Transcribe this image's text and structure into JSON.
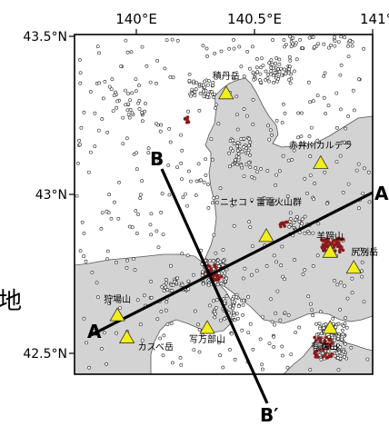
{
  "map": {
    "lon_labels": [
      "140°E",
      "140.5°E",
      "141°E"
    ],
    "lat_labels": [
      "43.5°N",
      "43°N",
      "42.5°N"
    ],
    "section_labels": {
      "a": "A",
      "a_prime": "A'",
      "b": "B",
      "b_prime": "B′"
    },
    "side_text": [
      "地"
    ],
    "volcanoes": [
      {
        "name": "積丹岳",
        "lon": 140.38,
        "lat": 43.32
      },
      {
        "name": "赤井川カルデラ",
        "lon": 140.78,
        "lat": 43.1
      },
      {
        "name": "ニセコ・雷電火山群",
        "lon": 140.55,
        "lat": 42.87
      },
      {
        "name": "羊蹄山",
        "lon": 140.82,
        "lat": 42.82
      },
      {
        "name": "尻別岳",
        "lon": 140.92,
        "lat": 42.77
      },
      {
        "name": "狩場山",
        "lon": 139.92,
        "lat": 42.62
      },
      {
        "name": "カスベ岳",
        "lon": 139.96,
        "lat": 42.55
      },
      {
        "name": "写万部山",
        "lon": 140.3,
        "lat": 42.58
      },
      {
        "name": "有珠山",
        "lon": 140.82,
        "lat": 42.58
      }
    ],
    "colors": {
      "land": "#d3d3d3",
      "sea": "#ffffff",
      "volcano": "#f2ee1a",
      "cluster": "#8b1a1a",
      "line": "#000000"
    }
  }
}
